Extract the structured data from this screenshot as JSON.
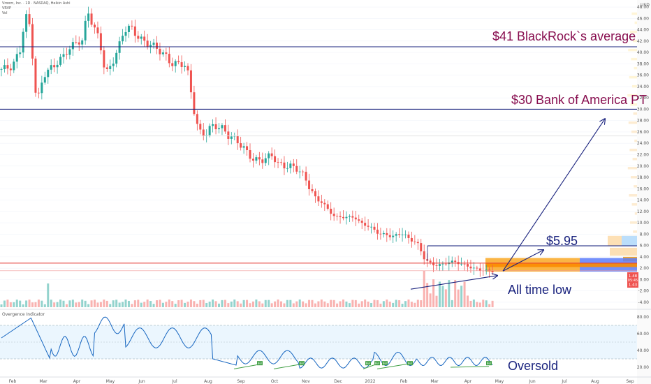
{
  "header": {
    "symbol_line": "Vroom, Inc. · 1D · NASDAQ, Heikin Ashi",
    "vrvp_label": "VRVP",
    "vol_label": "Vol"
  },
  "currency": "USD",
  "price_badge": {
    "value": "1.48",
    "timer": "05:45",
    "alt": "1.43"
  },
  "colors": {
    "up": "#26a69a",
    "down": "#ef5350",
    "line": "#1a237e",
    "annotation": "#880e4f",
    "osc": "#1565c0",
    "bull": "#43a047"
  },
  "chart_data": [
    {
      "type": "candlestick",
      "title": "",
      "y_range": [
        -4.5,
        48.5
      ],
      "y_ticks": [
        "48.00",
        "46.00",
        "44.00",
        "42.00",
        "40.00",
        "38.00",
        "36.00",
        "34.00",
        "32.00",
        "30.00",
        "28.00",
        "26.00",
        "24.00",
        "22.00",
        "20.00",
        "18.00",
        "16.00",
        "14.00",
        "12.00",
        "10.00",
        "8.00",
        "6.00",
        "4.00",
        "2.00",
        "0.00",
        "-2.00",
        "-4.00"
      ],
      "x_ticks": [
        "Feb",
        "Mar",
        "Apr",
        "May",
        "Jun",
        "Jul",
        "Aug",
        "Sep",
        "Oct",
        "Nov",
        "Dec",
        "2022",
        "Feb",
        "Mar",
        "Apr",
        "May",
        "Jun",
        "Jul",
        "Aug",
        "Sep"
      ],
      "price_path": [
        [
          0,
          37
        ],
        [
          4,
          37.5
        ],
        [
          7,
          41
        ],
        [
          8,
          47
        ],
        [
          10,
          44
        ],
        [
          11,
          35
        ],
        [
          12,
          31
        ],
        [
          14,
          36
        ],
        [
          16,
          37
        ],
        [
          18,
          38
        ],
        [
          20,
          39
        ],
        [
          22,
          40.5
        ],
        [
          25,
          42
        ],
        [
          27,
          42
        ],
        [
          28,
          48
        ],
        [
          30,
          44.5
        ],
        [
          32,
          42.5
        ],
        [
          34,
          36
        ],
        [
          36,
          38
        ],
        [
          38,
          40.5
        ],
        [
          40,
          44
        ],
        [
          42,
          44.5
        ],
        [
          44,
          43
        ],
        [
          46,
          42
        ],
        [
          48,
          41.5
        ],
        [
          50,
          41
        ],
        [
          52,
          40
        ],
        [
          54,
          39
        ],
        [
          55,
          38
        ],
        [
          57,
          38
        ],
        [
          59,
          38
        ],
        [
          60,
          37.5
        ],
        [
          61,
          35
        ],
        [
          62,
          31
        ],
        [
          64,
          26
        ],
        [
          66,
          25.5
        ],
        [
          68,
          27
        ],
        [
          70,
          27
        ],
        [
          72,
          26.5
        ],
        [
          73,
          25.5
        ],
        [
          75,
          25
        ],
        [
          78,
          23.5
        ],
        [
          80,
          22
        ],
        [
          82,
          21
        ],
        [
          84,
          21
        ],
        [
          86,
          21.5
        ],
        [
          88,
          22
        ],
        [
          89,
          20.5
        ],
        [
          91,
          20
        ],
        [
          93,
          20
        ],
        [
          96,
          19.5
        ],
        [
          98,
          18
        ],
        [
          100,
          16
        ],
        [
          102,
          14
        ],
        [
          104,
          13.5
        ],
        [
          106,
          12
        ],
        [
          108,
          11
        ],
        [
          110,
          11
        ],
        [
          112,
          11
        ],
        [
          114,
          11
        ],
        [
          116,
          10
        ],
        [
          118,
          9.5
        ],
        [
          120,
          9
        ],
        [
          122,
          8
        ],
        [
          124,
          8
        ],
        [
          126,
          7.5
        ],
        [
          128,
          8
        ],
        [
          130,
          8
        ],
        [
          132,
          7
        ],
        [
          134,
          6.5
        ],
        [
          135,
          6
        ],
        [
          136,
          4
        ],
        [
          138,
          3
        ],
        [
          140,
          2.5
        ],
        [
          142,
          2.6
        ],
        [
          144,
          3
        ],
        [
          146,
          3.2
        ],
        [
          148,
          2.8
        ],
        [
          150,
          2.5
        ],
        [
          152,
          2
        ],
        [
          154,
          1.8
        ],
        [
          156,
          1.6
        ],
        [
          158,
          1.45
        ]
      ],
      "horizontal_levels": [
        41,
        30,
        5.95
      ],
      "support_level": 2.9,
      "annotations": [
        {
          "text": "$41 BlackRock`s average",
          "value": 41
        },
        {
          "text": "$30 Bank of America PT",
          "value": 30
        },
        {
          "text": "$5.95",
          "value": 5.95
        },
        {
          "text": "All time low",
          "value": 1.45
        }
      ],
      "volume_profile": "right-side horizontal bars",
      "grid": true
    },
    {
      "type": "line",
      "title": "Overgence Indicator",
      "y_range": [
        10,
        85
      ],
      "y_ticks": [
        "80.00",
        "60.00",
        "40.00",
        "20.00"
      ],
      "overbought": 70,
      "oversold": 30,
      "annotations": [
        {
          "text": "Oversold"
        }
      ],
      "divergence_labels": [
        "Bull",
        "Bull",
        "Bull",
        "Bull",
        "Bull",
        "Bull",
        "Bull"
      ]
    }
  ]
}
